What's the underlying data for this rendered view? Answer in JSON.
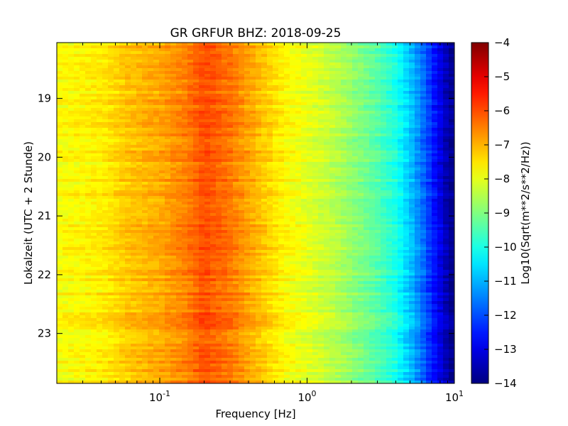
{
  "chart_data": {
    "type": "heatmap",
    "title": "GR GRFUR BHZ: 2018-09-25",
    "xlabel": "Frequency [Hz]",
    "ylabel": "Lokalzeit (UTC + 2 Stunde)",
    "x_scale": "log",
    "xlim": [
      0.02,
      10
    ],
    "x_ticks": [
      {
        "value": 0.1,
        "base": "10",
        "exp": "-1"
      },
      {
        "value": 1,
        "base": "10",
        "exp": "0"
      },
      {
        "value": 10,
        "base": "10",
        "exp": "1"
      }
    ],
    "ylim": [
      18.05,
      23.85
    ],
    "y_inverted": true,
    "y_ticks": [
      19,
      20,
      21,
      22,
      23
    ],
    "colormap": "jet",
    "colorbar": {
      "label": "Log10(Sqrt(m**2/s**2/Hz))",
      "range": [
        -14,
        -4
      ],
      "ticks": [
        -4,
        -5,
        -6,
        -7,
        -8,
        -9,
        -10,
        -11,
        -12,
        -13,
        -14
      ]
    },
    "profile": {
      "description": "Approximate spectral amplitude vs frequency (same across time rows with small variation)",
      "freq_hz": [
        0.02,
        0.04,
        0.06,
        0.1,
        0.15,
        0.2,
        0.3,
        0.5,
        0.7,
        1.0,
        1.5,
        2.0,
        3.0,
        4.0,
        5.0,
        6.0,
        7.0,
        8.0,
        9.0,
        10.0
      ],
      "log10_amp": [
        -7.8,
        -7.6,
        -7.2,
        -6.9,
        -6.5,
        -6.0,
        -6.4,
        -7.2,
        -7.7,
        -8.0,
        -8.4,
        -8.8,
        -9.4,
        -10.0,
        -10.8,
        -11.6,
        -12.4,
        -13.0,
        -13.6,
        -14.0
      ]
    }
  }
}
